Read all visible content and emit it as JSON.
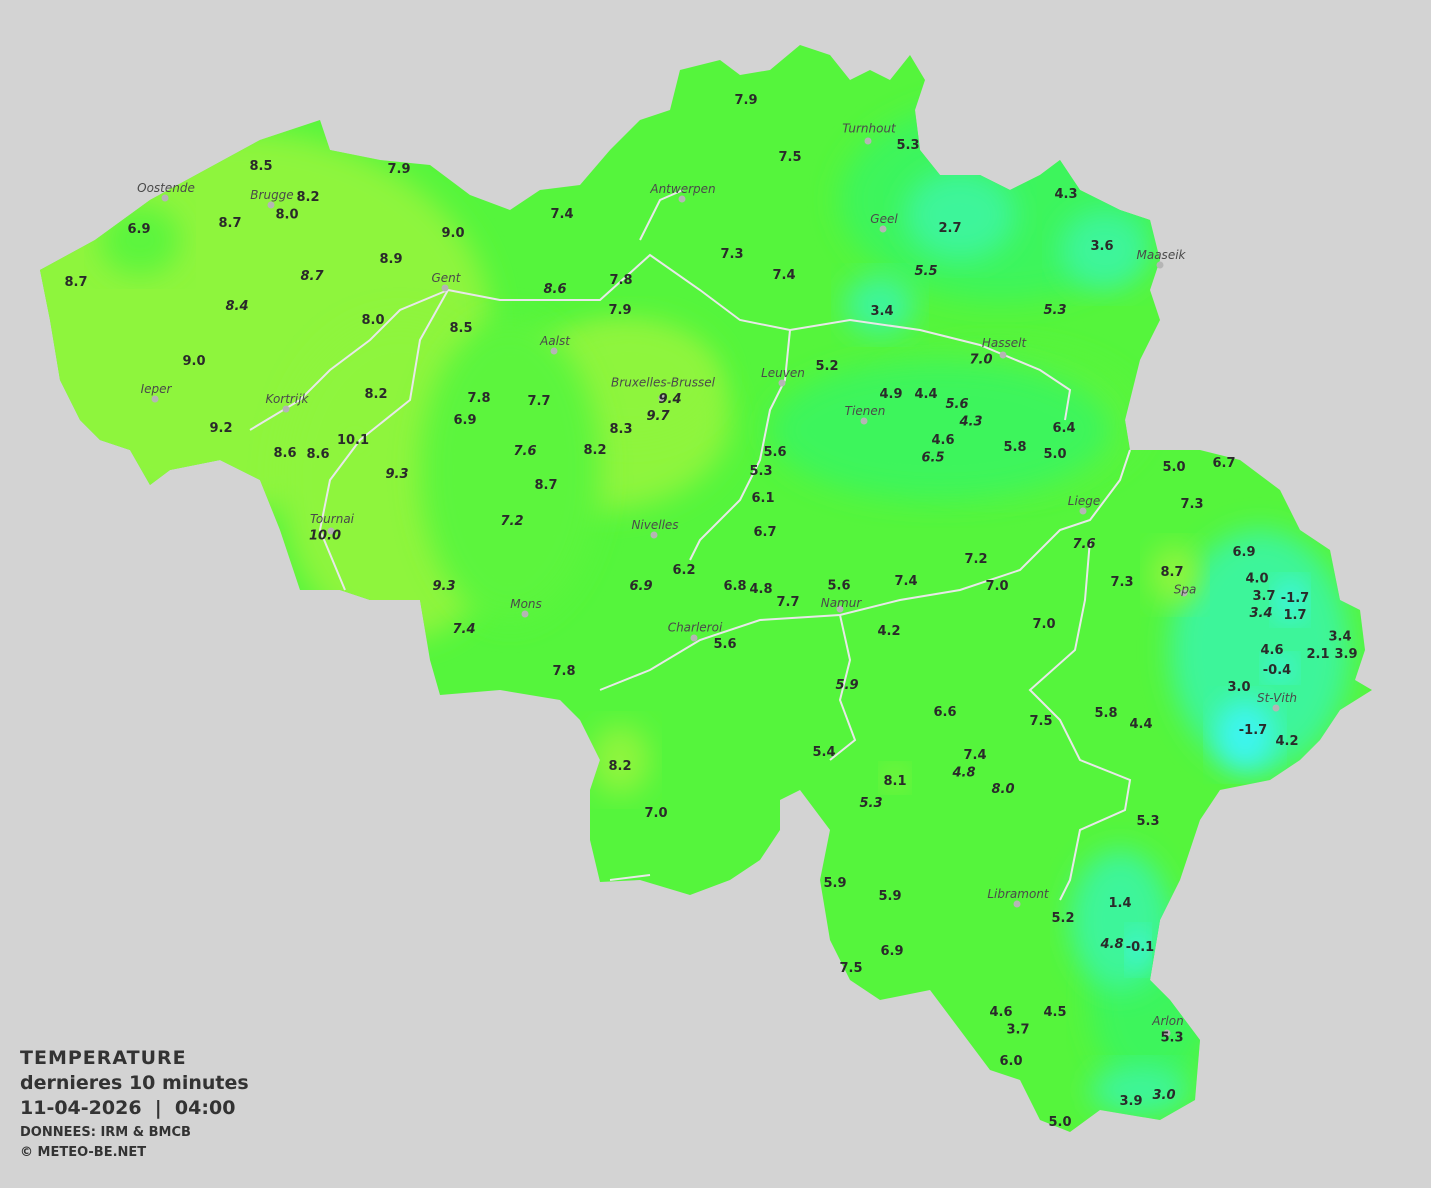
{
  "legend": {
    "title": "TEMPERATURE",
    "period": "dernieres 10 minutes",
    "datetime": "11-04-2026  |  04:00",
    "source": "DONNEES: IRM & BMCB",
    "copyright": "© METEO-BE.NET"
  },
  "colors": {
    "background": "#d3d3d3",
    "warm": "#8ef53d",
    "mild": "#5cf53c",
    "cool": "#3df55c",
    "cold": "#3cf59a",
    "freezing": "#3cf5f0"
  },
  "cities": [
    "Oostende",
    "Brugge",
    "Gent",
    "Antwerpen",
    "Turnhout",
    "Geel",
    "Maaseik",
    "Hasselt",
    "Aalst",
    "Bruxelles-Brussel",
    "Leuven",
    "Tienen",
    "Ieper",
    "Kortrijk",
    "Tournai",
    "Nivelles",
    "Liege",
    "Mons",
    "Charleroi",
    "Namur",
    "Spa",
    "St-Vith",
    "Libramont",
    "Arlon"
  ],
  "temperatures": [
    "8.5",
    "7.9",
    "8.2",
    "8.0",
    "6.9",
    "8.7",
    "9.0",
    "8.7",
    "8.9",
    "8.7",
    "8.4",
    "8.0",
    "8.5",
    "9.0",
    "8.2",
    "9.2",
    "8.6",
    "8.6",
    "10.1",
    "9.3",
    "10.0",
    "9.3",
    "7.4",
    "7.8",
    "6.9",
    "7.7",
    "7.6",
    "7.2",
    "8.7",
    "8.2",
    "8.3",
    "9.4",
    "9.7",
    "6.9",
    "6.2",
    "6.8",
    "4.8",
    "7.7",
    "5.6",
    "7.4",
    "7.2",
    "7.0",
    "7.6",
    "7.3",
    "8.7",
    "7.0",
    "4.2",
    "5.6",
    "7.8",
    "5.9",
    "6.6",
    "7.5",
    "5.4",
    "7.4",
    "4.8",
    "8.0",
    "8.1",
    "5.3",
    "8.2",
    "7.0",
    "5.9",
    "5.9",
    "5.2",
    "1.4",
    "4.8",
    "-0.1",
    "6.9",
    "7.5",
    "4.6",
    "4.5",
    "3.7",
    "5.3",
    "6.0",
    "3.9",
    "3.0",
    "5.0",
    "5.8",
    "4.4",
    "5.3",
    "7.9",
    "7.5",
    "5.3",
    "7.4",
    "7.3",
    "7.4",
    "2.7",
    "4.3",
    "3.6",
    "5.5",
    "5.3",
    "7.8",
    "7.9",
    "8.6",
    "3.4",
    "5.2",
    "7.0",
    "4.9",
    "4.4",
    "5.6",
    "4.3",
    "6.4",
    "4.6",
    "6.5",
    "5.8",
    "5.0",
    "5.6",
    "5.3",
    "6.1",
    "6.7",
    "5.0",
    "6.7",
    "7.3",
    "6.9",
    "4.0",
    "3.7",
    "-1.7",
    "3.4",
    "1.7",
    "4.6",
    "2.1",
    "3.4",
    "3.9",
    "-0.4",
    "3.0",
    "-1.7",
    "4.2"
  ]
}
